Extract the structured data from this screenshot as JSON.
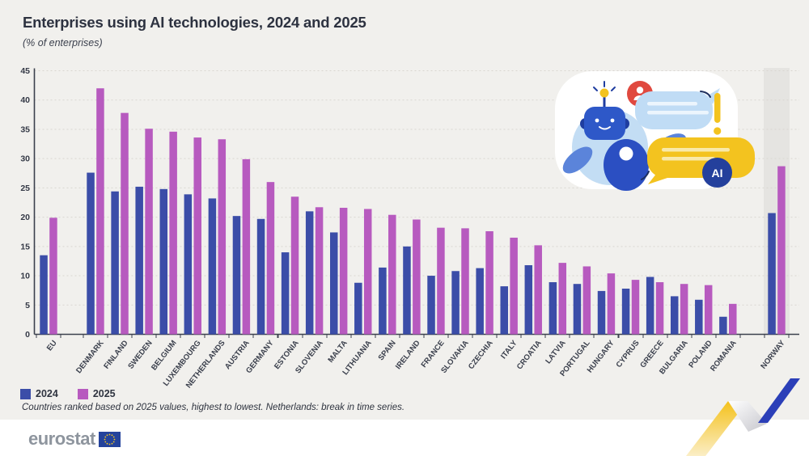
{
  "header": {
    "title": "Enterprises using AI technologies, 2024 and 2025",
    "subtitle": "(% of enterprises)"
  },
  "footnote": "Countries ranked based on 2025 values, highest to lowest. Netherlands: break in time series.",
  "footer": {
    "brand": "eurostat"
  },
  "illustration": {
    "name": "ai-robot-chat-illustration"
  },
  "colors": {
    "bar_2024": "#3B4DA8",
    "bar_2025": "#B75ABF",
    "background": "#f1f0ed",
    "axis": "#3B404D",
    "gridline": "#D9D6D1",
    "norway_band": "#e5e4e1",
    "accent_yellow": "#F3C31F",
    "accent_blue": "#2B3FB8"
  },
  "chart_data": {
    "type": "bar",
    "grouping": "grouped",
    "title": "Enterprises using AI technologies, 2024 and 2025",
    "subtitle": "(% of enterprises)",
    "ylabel": "% of enterprises",
    "xlabel": "",
    "ylim": [
      0,
      45
    ],
    "ytick_step": 5,
    "grid": "horizontal-dashed",
    "legend_position": "bottom-left",
    "categories": [
      "EU",
      "DENMARK",
      "FINLAND",
      "SWEDEN",
      "BELGIUM",
      "LUXEMBOURG",
      "NETHERLANDS",
      "AUSTRIA",
      "GERMANY",
      "ESTONIA",
      "SLOVENIA",
      "MALTA",
      "LITHUANIA",
      "SPAIN",
      "IRELAND",
      "FRANCE",
      "SLOVAKIA",
      "CZECHIA",
      "ITALY",
      "CROATIA",
      "LATVIA",
      "PORTUGAL",
      "HUNGARY",
      "CYPRUS",
      "GREECE",
      "BULGARIA",
      "POLAND",
      "ROMANIA",
      "NORWAY"
    ],
    "series": [
      {
        "name": "2024",
        "color": "#3B4DA8",
        "values": [
          13.5,
          27.6,
          24.4,
          25.2,
          24.8,
          23.9,
          23.2,
          20.2,
          19.7,
          14.0,
          21.0,
          17.4,
          8.8,
          11.4,
          15.0,
          10.0,
          10.8,
          11.3,
          8.2,
          11.8,
          8.9,
          8.6,
          7.4,
          7.8,
          9.8,
          6.5,
          5.9,
          3.0,
          20.7
        ]
      },
      {
        "name": "2025",
        "color": "#B75ABF",
        "values": [
          19.9,
          42.0,
          37.8,
          35.1,
          34.6,
          33.6,
          33.3,
          29.9,
          26.0,
          23.5,
          21.7,
          21.6,
          21.4,
          20.4,
          19.6,
          18.2,
          18.1,
          17.6,
          16.5,
          15.2,
          12.2,
          11.6,
          10.4,
          9.3,
          8.9,
          8.6,
          8.4,
          5.2,
          28.7
        ]
      }
    ],
    "highlight": {
      "category": "NORWAY",
      "style": "gray-band"
    },
    "separators_after": [
      "EU",
      "ROMANIA"
    ]
  }
}
